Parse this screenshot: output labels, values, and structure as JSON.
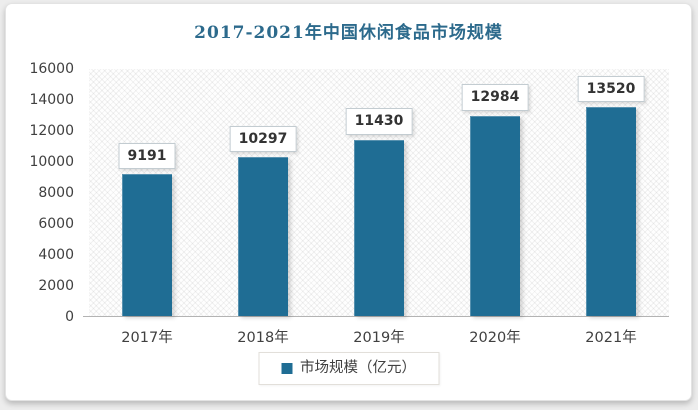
{
  "page": {
    "background": "#ededed",
    "card_background": "#ffffff"
  },
  "colors": {
    "bar": "#1f6d94",
    "title": "#2c6a8c",
    "axis_text": "#404040",
    "value_label_text": "#333333",
    "axis_line": "#b3b3b3",
    "value_box_border": "#c3ccd1",
    "legend_border": "#e2dfda"
  },
  "chart_data": {
    "type": "bar",
    "title": "2017-2021年中国休闲食品市场规模",
    "categories": [
      "2017年",
      "2018年",
      "2019年",
      "2020年",
      "2021年"
    ],
    "values": [
      9191,
      10297,
      11430,
      12984,
      13520
    ],
    "series_name": "市场规模（亿元）",
    "xlabel": "",
    "ylabel": "",
    "ylim": [
      0,
      16000
    ],
    "yticks": [
      0,
      2000,
      4000,
      6000,
      8000,
      10000,
      12000,
      14000,
      16000
    ],
    "grid": false,
    "legend_position": "bottom",
    "data_labels": true,
    "plot_background": "hatched"
  },
  "legend": {
    "label": "市场规模（亿元）"
  }
}
